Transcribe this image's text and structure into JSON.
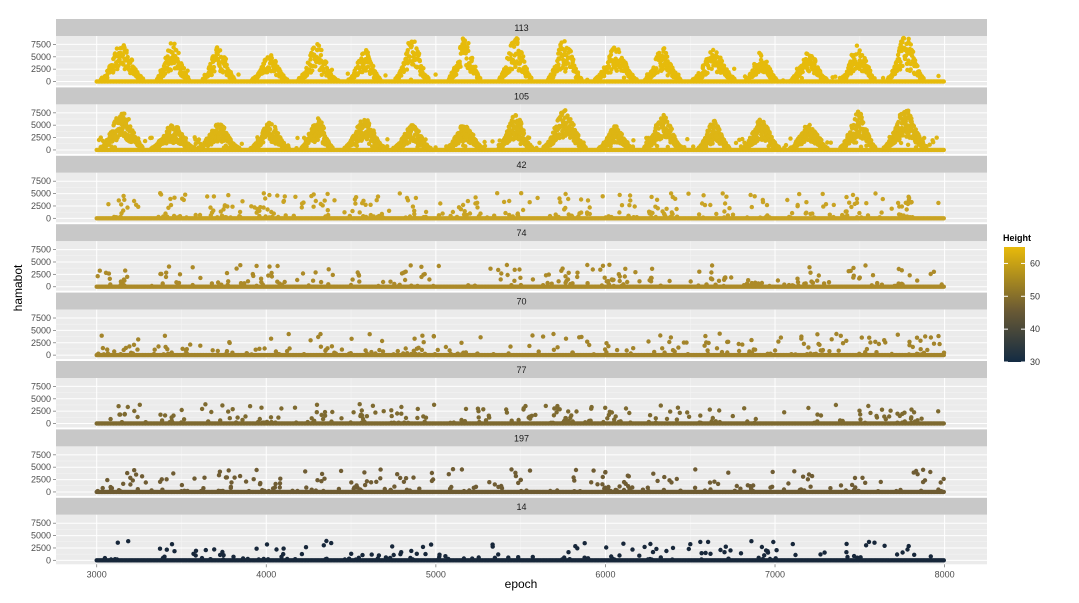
{
  "chart_data": {
    "type": "scatter",
    "facet": "panel",
    "xlabel": "epoch",
    "ylabel": "hamabot",
    "xlim": [
      2760,
      8250
    ],
    "ylim": [
      -800,
      9200
    ],
    "x_ticks": [
      3000,
      4000,
      5000,
      6000,
      7000,
      8000
    ],
    "x_tick_labels": [
      "3000",
      "4000",
      "5000",
      "6000",
      "7000",
      "8000"
    ],
    "y_ticks": [
      0,
      2500,
      5000,
      7500
    ],
    "y_tick_labels": [
      "0",
      "2500",
      "5000",
      "7500"
    ],
    "x_range_of_points": [
      3000,
      8000
    ],
    "legend": {
      "title": "Height",
      "position": "right",
      "range": [
        30,
        65
      ],
      "ticks": [
        30,
        40,
        50,
        60
      ],
      "tick_labels": [
        "30",
        "40",
        "50",
        "60"
      ],
      "low_color": "#132B43",
      "high_color": "#E8BA0A"
    },
    "panels": [
      {
        "label": "113",
        "height_value": 64,
        "color": "#E6BB0B",
        "pattern": "periodic_peaks",
        "peak_max": 8500,
        "peak_centers": [
          3150,
          3450,
          3720,
          4020,
          4300,
          4580,
          4860,
          5170,
          5470,
          5760,
          6060,
          6340,
          6640,
          6920,
          7200,
          7490,
          7770
        ]
      },
      {
        "label": "105",
        "height_value": 62,
        "color": "#DDB514",
        "pattern": "periodic_peaks",
        "peak_max": 7500,
        "peak_centers": [
          3150,
          3450,
          3720,
          4020,
          4300,
          4580,
          4860,
          5170,
          5470,
          5760,
          6060,
          6340,
          6640,
          6920,
          7200,
          7490,
          7770
        ]
      },
      {
        "label": "42",
        "height_value": 57,
        "color": "#C9A323",
        "pattern": "scattered_clusters",
        "peak_max": 5000
      },
      {
        "label": "74",
        "height_value": 55,
        "color": "#AC8A28",
        "pattern": "scattered",
        "peak_max": 4300
      },
      {
        "label": "70",
        "height_value": 54,
        "color": "#A3842A",
        "pattern": "scattered",
        "peak_max": 4200
      },
      {
        "label": "77",
        "height_value": 50,
        "color": "#7E6A30",
        "pattern": "scattered",
        "peak_max": 3800
      },
      {
        "label": "197",
        "height_value": 48,
        "color": "#6F5C33",
        "pattern": "scattered",
        "peak_max": 4500
      },
      {
        "label": "14",
        "height_value": 30,
        "color": "#17273A",
        "pattern": "sparse",
        "peak_max": 3800
      }
    ],
    "colors": {
      "panel_background": "#EBEBEB",
      "strip_background": "#C8C8C8",
      "grid_major": "#FFFFFF",
      "grid_minor": "#F5F5F5"
    }
  }
}
